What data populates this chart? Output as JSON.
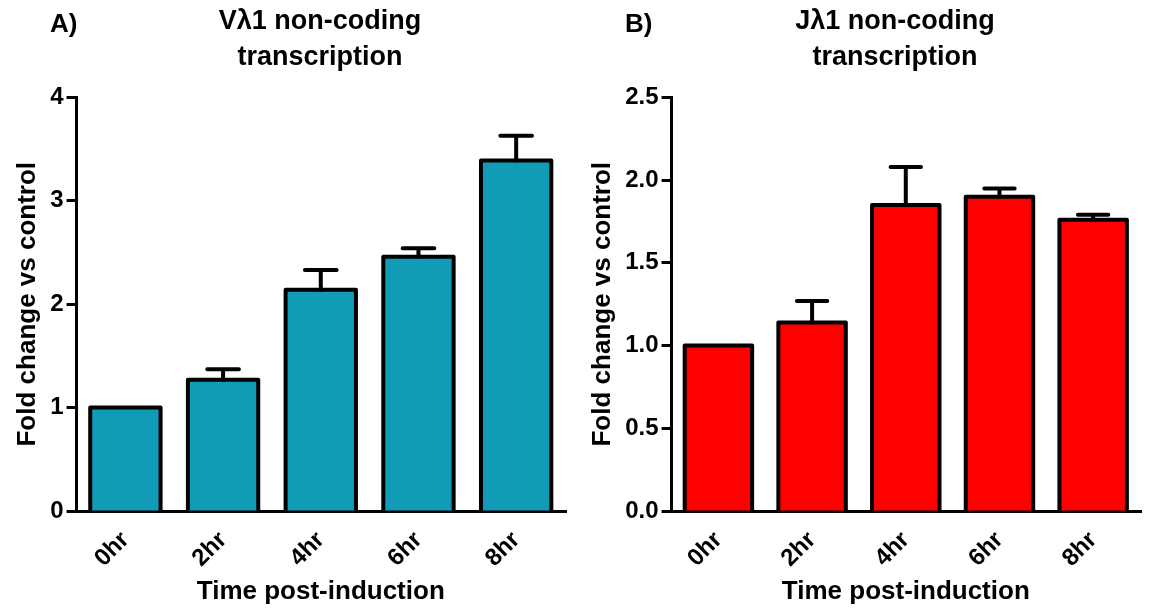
{
  "chart_data": [
    {
      "type": "bar",
      "title": "Vλ1 non-coding transcription",
      "annotations": [
        "A)"
      ],
      "xlabel": "Time post-induction",
      "ylabel": "Fold change vs control",
      "categories": [
        "0hr",
        "2hr",
        "4hr",
        "6hr",
        "8hr"
      ],
      "series": [
        {
          "color": "#129bb6",
          "values": [
            1.0,
            1.27,
            2.14,
            2.46,
            3.39
          ],
          "errors": [
            null,
            [
              1.27,
              1.37
            ],
            [
              2.14,
              2.33
            ],
            [
              2.46,
              2.54
            ],
            [
              3.39,
              3.63
            ]
          ]
        }
      ],
      "ylim": [
        0,
        4
      ],
      "yticks": [
        0,
        1,
        2,
        3,
        4
      ],
      "grid": false,
      "legend": false
    },
    {
      "type": "bar",
      "title": "Jλ1 non-coding transcription",
      "annotations": [
        "B)"
      ],
      "xlabel": "Time post-induction",
      "ylabel": "Fold change vs control",
      "categories": [
        "0hr",
        "2hr",
        "4hr",
        "6hr",
        "8hr"
      ],
      "series": [
        {
          "color": "#ff0000",
          "values": [
            1.0,
            1.14,
            1.85,
            1.9,
            1.76
          ],
          "errors": [
            null,
            [
              1.14,
              1.27
            ],
            [
              1.85,
              2.08
            ],
            [
              1.9,
              1.95
            ],
            [
              1.76,
              1.79
            ]
          ]
        }
      ],
      "ylim": [
        0,
        2.5
      ],
      "yticks": [
        {
          "value": 0,
          "label": "0.0"
        },
        {
          "value": 0.5,
          "label": "0.5"
        },
        {
          "value": 1,
          "label": "1.0"
        },
        {
          "value": 1.5,
          "label": "1.5"
        },
        {
          "value": 2,
          "label": "2.0"
        },
        {
          "value": 2.5,
          "label": "2.5"
        }
      ],
      "grid": false,
      "legend": false
    }
  ]
}
